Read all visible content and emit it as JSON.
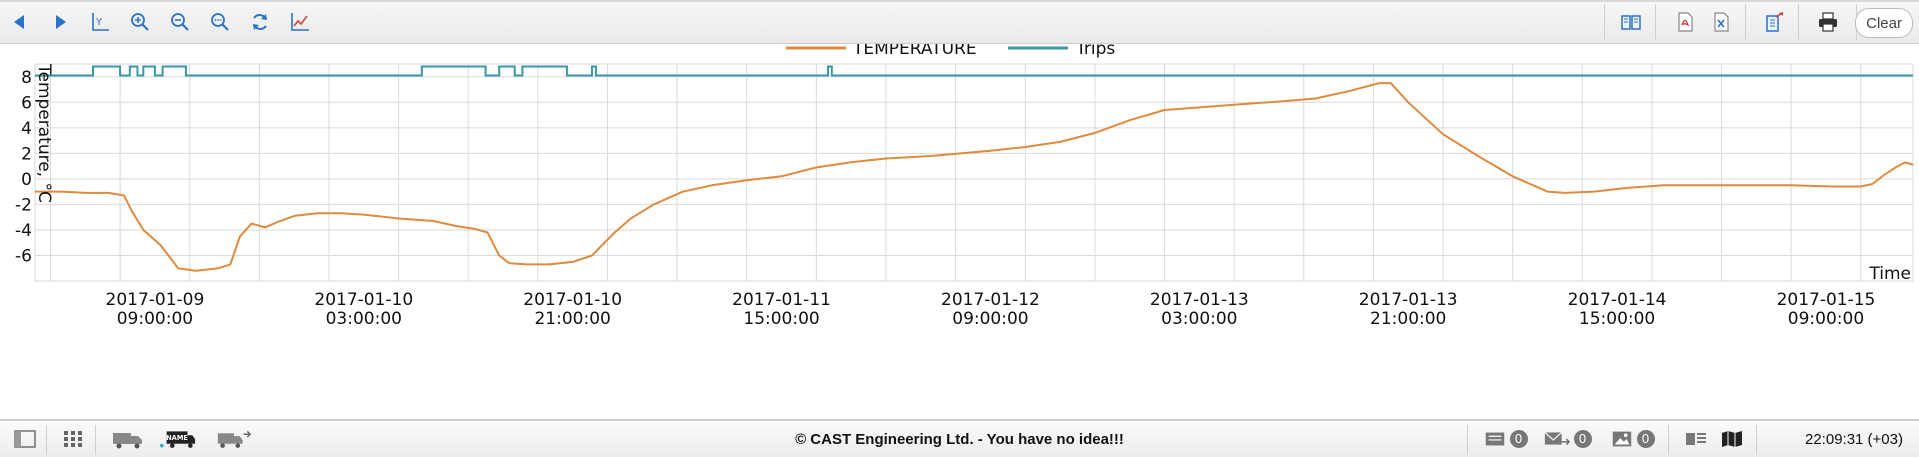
{
  "toolbar": {
    "left_icons": [
      "back-arrow-icon",
      "forward-arrow-icon",
      "y-axis-icon",
      "zoom-in-icon",
      "zoom-out-icon",
      "zoom-reset-icon",
      "refresh-icon",
      "chart-line-icon"
    ],
    "right_icons": [
      "book-icon",
      "pdf-icon",
      "excel-icon",
      "export-icon",
      "print-icon"
    ],
    "clear_label": "Clear"
  },
  "status": {
    "copyright": "© CAST Engineering Ltd. - You have no idea!!!",
    "clock": "22:09:31 (+03)",
    "badge_messages": "0",
    "badge_transfers": "0",
    "badge_images": "0"
  },
  "colors": {
    "temperature": "#e08a3c",
    "trips": "#3a98a6",
    "grid": "#dadada"
  },
  "chart_data": {
    "type": "line",
    "legend_position": "top-center",
    "grid": true,
    "ylabel": "Temperature, °C",
    "xlabel": "Time",
    "ylim": [
      -8,
      9
    ],
    "yticks": [
      -6,
      -4,
      -2,
      0,
      2,
      4,
      6,
      8
    ],
    "xlim": [
      "2017-01-08 22:40",
      "2017-01-15 16:30"
    ],
    "xticks": [
      {
        "date": "2017-01-09",
        "time": "09:00:00",
        "at": "2017-01-09 09:00"
      },
      {
        "date": "2017-01-10",
        "time": "03:00:00",
        "at": "2017-01-10 03:00"
      },
      {
        "date": "2017-01-10",
        "time": "21:00:00",
        "at": "2017-01-10 21:00"
      },
      {
        "date": "2017-01-11",
        "time": "15:00:00",
        "at": "2017-01-11 15:00"
      },
      {
        "date": "2017-01-12",
        "time": "09:00:00",
        "at": "2017-01-12 09:00"
      },
      {
        "date": "2017-01-13",
        "time": "03:00:00",
        "at": "2017-01-13 03:00"
      },
      {
        "date": "2017-01-13",
        "time": "21:00:00",
        "at": "2017-01-13 21:00"
      },
      {
        "date": "2017-01-14",
        "time": "15:00:00",
        "at": "2017-01-14 15:00"
      },
      {
        "date": "2017-01-15",
        "time": "09:00:00",
        "at": "2017-01-15 09:00"
      }
    ],
    "series": [
      {
        "name": "TEMPERATURE",
        "points": [
          [
            "2017-01-08 22:40",
            -1.0
          ],
          [
            "2017-01-09 01:00",
            -1.0
          ],
          [
            "2017-01-09 03:00",
            -1.1
          ],
          [
            "2017-01-09 05:00",
            -1.1
          ],
          [
            "2017-01-09 06:20",
            -1.3
          ],
          [
            "2017-01-09 07:00",
            -2.5
          ],
          [
            "2017-01-09 08:00",
            -4.0
          ],
          [
            "2017-01-09 09:30",
            -5.2
          ],
          [
            "2017-01-09 11:00",
            -7.0
          ],
          [
            "2017-01-09 12:30",
            -7.2
          ],
          [
            "2017-01-09 14:30",
            -7.0
          ],
          [
            "2017-01-09 15:30",
            -6.7
          ],
          [
            "2017-01-09 16:20",
            -4.5
          ],
          [
            "2017-01-09 17:20",
            -3.5
          ],
          [
            "2017-01-09 18:30",
            -3.8
          ],
          [
            "2017-01-09 19:30",
            -3.4
          ],
          [
            "2017-01-09 21:00",
            -2.9
          ],
          [
            "2017-01-09 23:00",
            -2.7
          ],
          [
            "2017-01-10 01:00",
            -2.7
          ],
          [
            "2017-01-10 03:00",
            -2.8
          ],
          [
            "2017-01-10 06:00",
            -3.1
          ],
          [
            "2017-01-10 09:00",
            -3.3
          ],
          [
            "2017-01-10 11:00",
            -3.7
          ],
          [
            "2017-01-10 12:30",
            -3.9
          ],
          [
            "2017-01-10 13:40",
            -4.2
          ],
          [
            "2017-01-10 14:40",
            -6.0
          ],
          [
            "2017-01-10 15:30",
            -6.6
          ],
          [
            "2017-01-10 17:00",
            -6.7
          ],
          [
            "2017-01-10 19:00",
            -6.7
          ],
          [
            "2017-01-10 21:00",
            -6.5
          ],
          [
            "2017-01-10 22:40",
            -6.0
          ],
          [
            "2017-01-11 00:30",
            -4.3
          ],
          [
            "2017-01-11 02:00",
            -3.1
          ],
          [
            "2017-01-11 04:00",
            -2.0
          ],
          [
            "2017-01-11 06:30",
            -1.0
          ],
          [
            "2017-01-11 09:00",
            -0.5
          ],
          [
            "2017-01-11 12:00",
            -0.1
          ],
          [
            "2017-01-11 15:00",
            0.2
          ],
          [
            "2017-01-11 18:00",
            0.9
          ],
          [
            "2017-01-11 21:00",
            1.3
          ],
          [
            "2017-01-12 00:00",
            1.6
          ],
          [
            "2017-01-12 04:00",
            1.8
          ],
          [
            "2017-01-12 09:00",
            2.2
          ],
          [
            "2017-01-12 12:00",
            2.5
          ],
          [
            "2017-01-12 15:00",
            2.9
          ],
          [
            "2017-01-12 18:00",
            3.6
          ],
          [
            "2017-01-12 21:00",
            4.6
          ],
          [
            "2017-01-13 00:00",
            5.4
          ],
          [
            "2017-01-13 03:00",
            5.6
          ],
          [
            "2017-01-13 06:00",
            5.8
          ],
          [
            "2017-01-13 09:00",
            6.0
          ],
          [
            "2017-01-13 13:00",
            6.3
          ],
          [
            "2017-01-13 16:00",
            6.9
          ],
          [
            "2017-01-13 18:30",
            7.5
          ],
          [
            "2017-01-13 19:30",
            7.5
          ],
          [
            "2017-01-13 21:00",
            6.0
          ],
          [
            "2017-01-14 00:00",
            3.5
          ],
          [
            "2017-01-14 03:00",
            1.8
          ],
          [
            "2017-01-14 06:00",
            0.2
          ],
          [
            "2017-01-14 09:00",
            -1.0
          ],
          [
            "2017-01-14 10:30",
            -1.1
          ],
          [
            "2017-01-14 13:00",
            -1.0
          ],
          [
            "2017-01-14 16:00",
            -0.7
          ],
          [
            "2017-01-14 19:00",
            -0.5
          ],
          [
            "2017-01-14 22:00",
            -0.5
          ],
          [
            "2017-01-15 02:00",
            -0.5
          ],
          [
            "2017-01-15 06:00",
            -0.5
          ],
          [
            "2017-01-15 09:30",
            -0.6
          ],
          [
            "2017-01-15 12:00",
            -0.6
          ],
          [
            "2017-01-15 13:00",
            -0.4
          ],
          [
            "2017-01-15 14:00",
            0.3
          ],
          [
            "2017-01-15 15:00",
            0.9
          ],
          [
            "2017-01-15 15:50",
            1.3
          ],
          [
            "2017-01-15 16:30",
            1.1
          ]
        ]
      },
      {
        "name": "Trips",
        "baseline": 8.1,
        "high": 8.8,
        "spikes": [
          [
            "2017-01-09 03:40",
            "2017-01-09 06:00"
          ],
          [
            "2017-01-09 06:50",
            "2017-01-09 07:30"
          ],
          [
            "2017-01-09 08:00",
            "2017-01-09 09:00"
          ],
          [
            "2017-01-09 09:40",
            "2017-01-09 11:40"
          ],
          [
            "2017-01-10 08:00",
            "2017-01-10 13:30"
          ],
          [
            "2017-01-10 14:40",
            "2017-01-10 16:00"
          ],
          [
            "2017-01-10 16:40",
            "2017-01-10 20:30"
          ],
          [
            "2017-01-10 22:40",
            "2017-01-10 23:00"
          ],
          [
            "2017-01-11 19:00",
            "2017-01-11 19:20"
          ]
        ]
      }
    ]
  }
}
